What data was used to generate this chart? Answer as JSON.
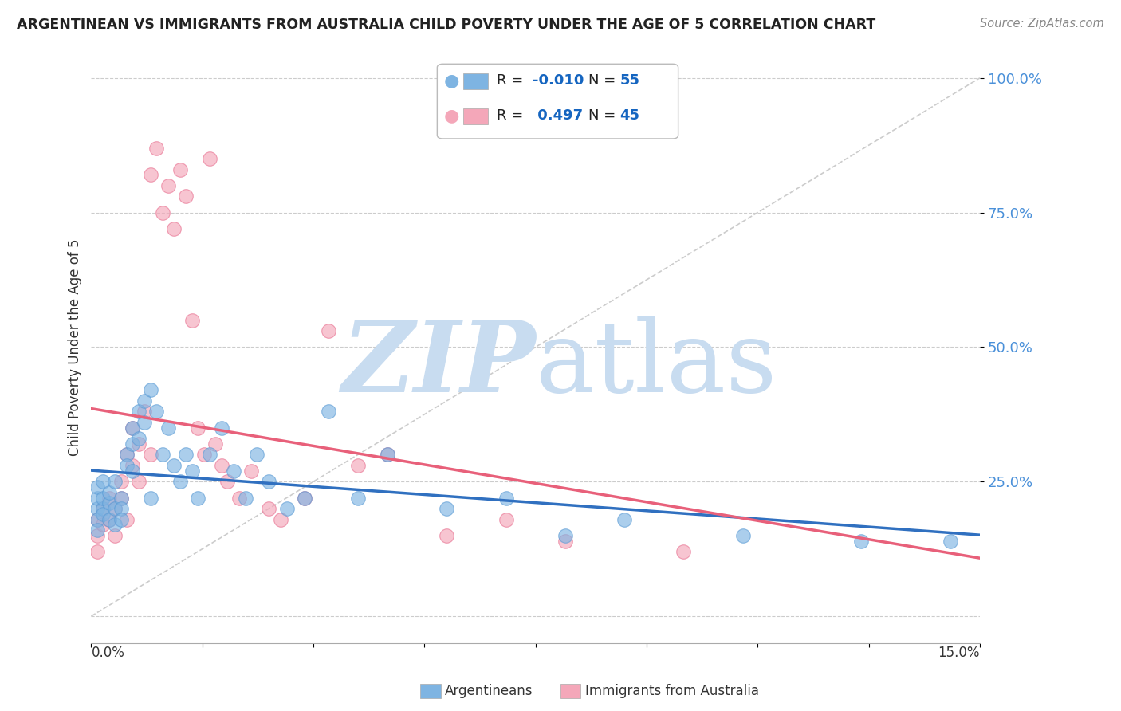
{
  "title": "ARGENTINEAN VS IMMIGRANTS FROM AUSTRALIA CHILD POVERTY UNDER THE AGE OF 5 CORRELATION CHART",
  "source": "Source: ZipAtlas.com",
  "ylabel": "Child Poverty Under the Age of 5",
  "series1_label": "Argentineans",
  "series1_color": "#7EB4E2",
  "series1_edge_color": "#5B9BD5",
  "series2_label": "Immigrants from Australia",
  "series2_color": "#F4A7B9",
  "series2_edge_color": "#E87090",
  "trend1_color": "#3070C0",
  "trend2_color": "#E8607A",
  "legend_text_color": "#222222",
  "legend_val_color": "#1565C0",
  "background_color": "#FFFFFF",
  "grid_color": "#CCCCCC",
  "diagonal_color": "#CCCCCC",
  "watermark_color": "#C8DCF0",
  "blue_x": [
    0.001,
    0.001,
    0.001,
    0.001,
    0.001,
    0.002,
    0.002,
    0.002,
    0.002,
    0.003,
    0.003,
    0.003,
    0.004,
    0.004,
    0.004,
    0.005,
    0.005,
    0.005,
    0.006,
    0.006,
    0.007,
    0.007,
    0.007,
    0.008,
    0.008,
    0.009,
    0.009,
    0.01,
    0.01,
    0.011,
    0.012,
    0.013,
    0.014,
    0.015,
    0.016,
    0.017,
    0.018,
    0.02,
    0.022,
    0.024,
    0.026,
    0.028,
    0.03,
    0.033,
    0.036,
    0.04,
    0.045,
    0.05,
    0.06,
    0.07,
    0.08,
    0.09,
    0.11,
    0.13,
    0.145
  ],
  "blue_y": [
    0.2,
    0.18,
    0.22,
    0.16,
    0.24,
    0.2,
    0.19,
    0.22,
    0.25,
    0.18,
    0.21,
    0.23,
    0.2,
    0.17,
    0.25,
    0.22,
    0.2,
    0.18,
    0.3,
    0.28,
    0.35,
    0.32,
    0.27,
    0.38,
    0.33,
    0.4,
    0.36,
    0.42,
    0.22,
    0.38,
    0.3,
    0.35,
    0.28,
    0.25,
    0.3,
    0.27,
    0.22,
    0.3,
    0.35,
    0.27,
    0.22,
    0.3,
    0.25,
    0.2,
    0.22,
    0.38,
    0.22,
    0.3,
    0.2,
    0.22,
    0.15,
    0.18,
    0.15,
    0.14,
    0.14
  ],
  "pink_x": [
    0.001,
    0.001,
    0.001,
    0.002,
    0.002,
    0.003,
    0.003,
    0.004,
    0.004,
    0.005,
    0.005,
    0.006,
    0.006,
    0.007,
    0.007,
    0.008,
    0.008,
    0.009,
    0.01,
    0.01,
    0.011,
    0.012,
    0.013,
    0.014,
    0.015,
    0.016,
    0.017,
    0.018,
    0.019,
    0.02,
    0.021,
    0.022,
    0.023,
    0.025,
    0.027,
    0.03,
    0.032,
    0.036,
    0.04,
    0.045,
    0.05,
    0.06,
    0.07,
    0.08,
    0.1
  ],
  "pink_y": [
    0.18,
    0.15,
    0.12,
    0.2,
    0.17,
    0.22,
    0.18,
    0.15,
    0.2,
    0.25,
    0.22,
    0.3,
    0.18,
    0.35,
    0.28,
    0.32,
    0.25,
    0.38,
    0.82,
    0.3,
    0.87,
    0.75,
    0.8,
    0.72,
    0.83,
    0.78,
    0.55,
    0.35,
    0.3,
    0.85,
    0.32,
    0.28,
    0.25,
    0.22,
    0.27,
    0.2,
    0.18,
    0.22,
    0.53,
    0.28,
    0.3,
    0.15,
    0.18,
    0.14,
    0.12
  ],
  "xlim": [
    0.0,
    0.15
  ],
  "ylim": [
    -0.05,
    1.05
  ]
}
